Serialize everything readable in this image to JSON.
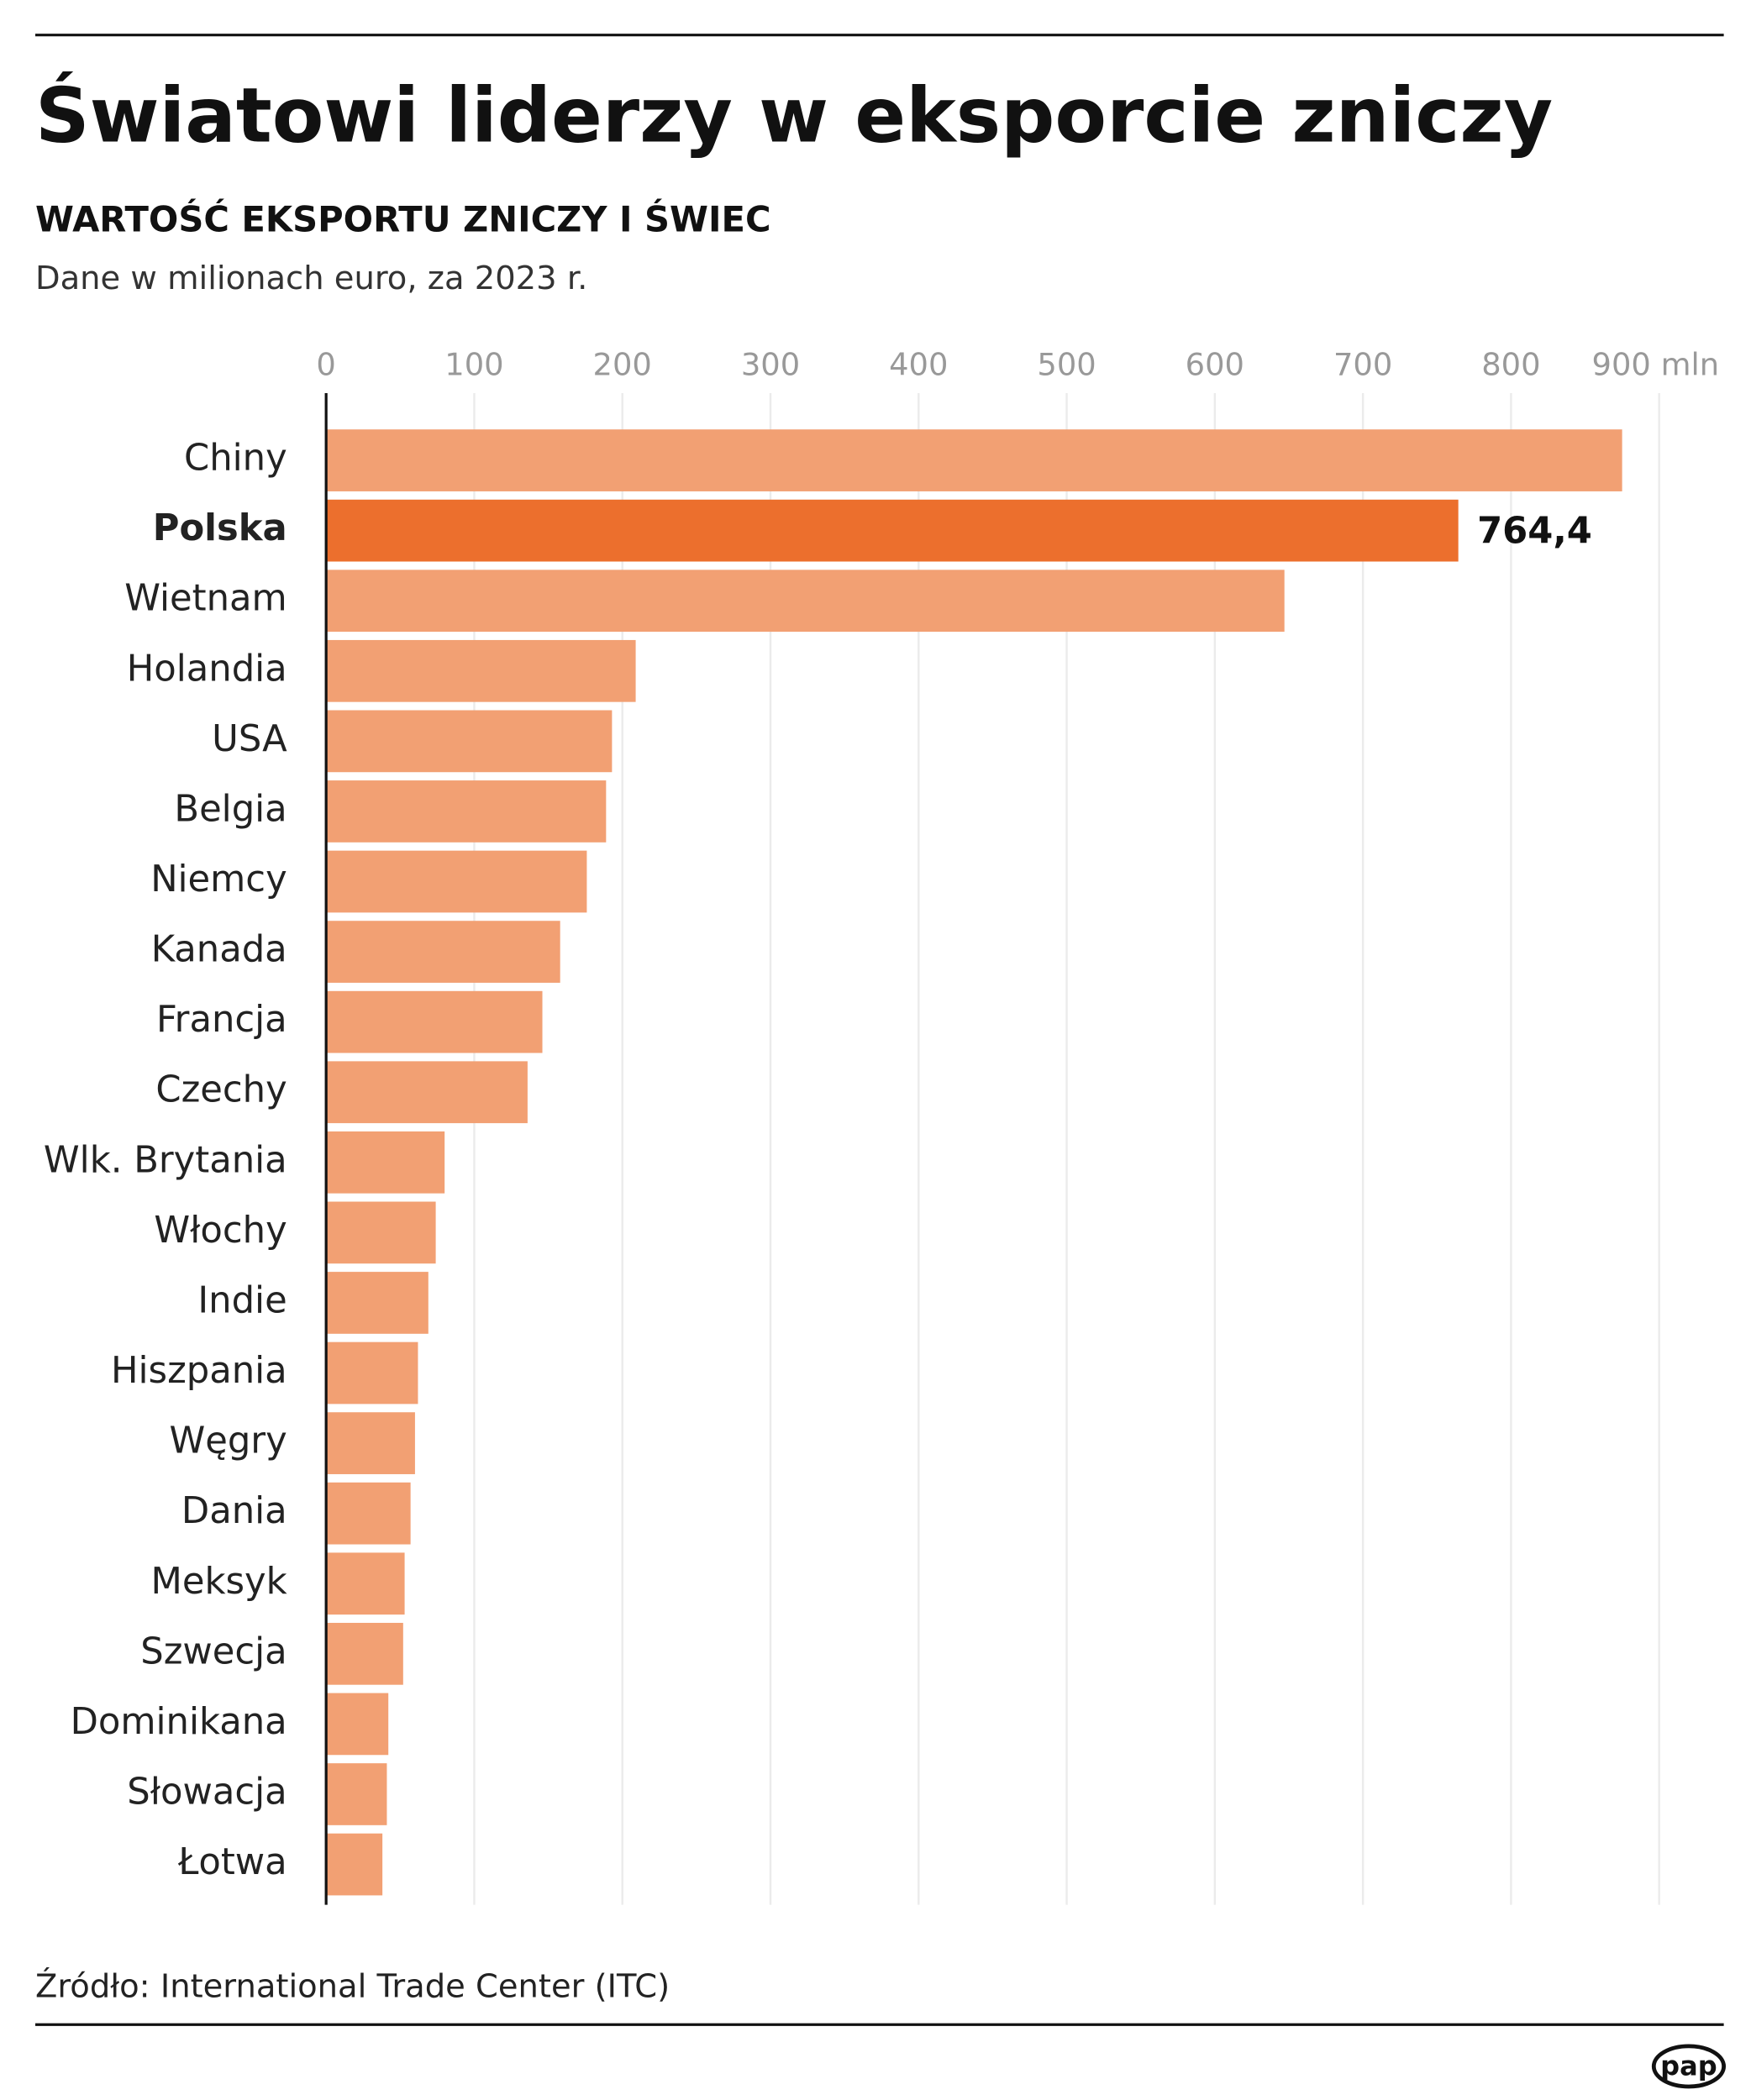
{
  "chart_data": {
    "type": "bar",
    "orientation": "horizontal",
    "title": "Światowi liderzy w eksporcie zniczy",
    "subtitle": "WARTOŚĆ EKSPORTU ZNICZY I ŚWIEC",
    "note": "Dane w milionach euro, za 2023 r.",
    "source": "Źródło: International Trade Center (ITC)",
    "logo": "pap",
    "categories": [
      "Chiny",
      "Polska",
      "Wietnam",
      "Holandia",
      "USA",
      "Belgia",
      "Niemcy",
      "Kanada",
      "Francja",
      "Czechy",
      "Wlk. Brytania",
      "Włochy",
      "Indie",
      "Hiszpania",
      "Węgry",
      "Dania",
      "Meksyk",
      "Szwecja",
      "Dominikana",
      "Słowacja",
      "Łotwa"
    ],
    "values": [
      875,
      764.4,
      647,
      209,
      193,
      189,
      176,
      158,
      146,
      136,
      80,
      74,
      69,
      62,
      60,
      57,
      53,
      52,
      42,
      41,
      38
    ],
    "value_labels": [
      null,
      "764,4",
      null,
      null,
      null,
      null,
      null,
      null,
      null,
      null,
      null,
      null,
      null,
      null,
      null,
      null,
      null,
      null,
      null,
      null,
      null
    ],
    "colors": [
      "#f2a073",
      "#ec6f2d",
      "#f2a073",
      "#f2a073",
      "#f2a073",
      "#f2a073",
      "#f2a073",
      "#f2a073",
      "#f2a073",
      "#f2a073",
      "#f2a073",
      "#f2a073",
      "#f2a073",
      "#f2a073",
      "#f2a073",
      "#f2a073",
      "#f2a073",
      "#f2a073",
      "#f2a073",
      "#f2a073",
      "#f2a073"
    ],
    "xlim": [
      0,
      900
    ],
    "xticks": [
      0,
      100,
      200,
      300,
      400,
      500,
      600,
      700,
      800,
      {
        "value": 900,
        "label": "900 mln"
      }
    ],
    "grid": true
  }
}
